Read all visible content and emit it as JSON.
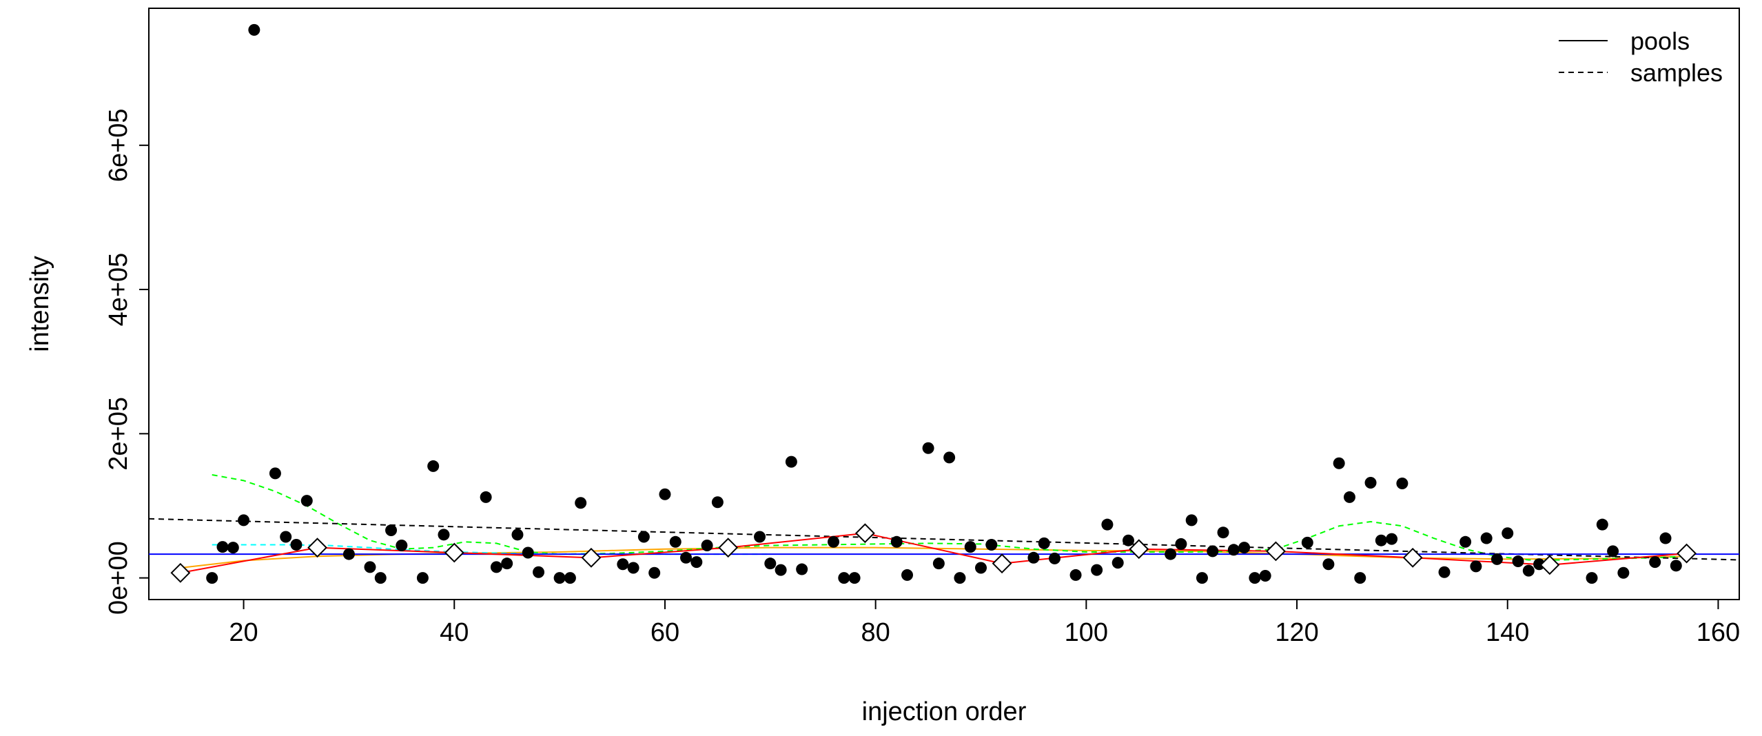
{
  "chart_data": {
    "type": "scatter",
    "title": "",
    "xlabel": "injection order",
    "ylabel": "intensity",
    "xlim": [
      11,
      162
    ],
    "ylim": [
      -30000,
      790000
    ],
    "x_ticks": [
      20,
      40,
      60,
      80,
      100,
      120,
      140,
      160
    ],
    "x_tick_labels": [
      "20",
      "40",
      "60",
      "80",
      "100",
      "120",
      "140",
      "160"
    ],
    "y_ticks": [
      0,
      200000,
      400000,
      600000
    ],
    "y_tick_labels": [
      "0e+00",
      "2e+05",
      "4e+05",
      "6e+05"
    ],
    "grid": false,
    "legend": {
      "placement": "top-right",
      "entries": [
        {
          "label": "pools",
          "line_style": "solid"
        },
        {
          "label": "samples",
          "line_style": "dashed"
        }
      ]
    },
    "colors": {
      "points": "#000000",
      "pools_line": "#ff0000",
      "samples_trend": "#000000",
      "loess_green": "#00ff00",
      "loess_cyan": "#00ffff",
      "orange_trend": "#ffa500",
      "blue_line": "#0000ff"
    },
    "samples": {
      "x": [
        17,
        18,
        19,
        20,
        21,
        23,
        24,
        25,
        26,
        30,
        32,
        33,
        34,
        35,
        37,
        38,
        39,
        43,
        44,
        45,
        46,
        47,
        48,
        50,
        51,
        52,
        56,
        57,
        58,
        59,
        60,
        61,
        62,
        63,
        64,
        65,
        69,
        70,
        71,
        72,
        73,
        76,
        77,
        78,
        82,
        83,
        85,
        86,
        87,
        88,
        89,
        90,
        91,
        95,
        96,
        97,
        99,
        101,
        102,
        103,
        104,
        108,
        109,
        110,
        111,
        112,
        113,
        114,
        115,
        116,
        117,
        121,
        123,
        124,
        125,
        126,
        127,
        128,
        129,
        130,
        134,
        136,
        137,
        138,
        139,
        140,
        141,
        142,
        143,
        148,
        149,
        150,
        151,
        154,
        155,
        156
      ],
      "y": [
        0,
        43000,
        42000,
        80000,
        760000,
        145000,
        57000,
        46000,
        107000,
        33000,
        15000,
        0,
        66000,
        45000,
        0,
        155000,
        60000,
        112000,
        15000,
        20000,
        60000,
        35000,
        8000,
        0,
        0,
        104000,
        19000,
        14000,
        57000,
        7000,
        116000,
        50000,
        28000,
        22000,
        45000,
        105000,
        57000,
        20000,
        11000,
        161000,
        12000,
        50000,
        0,
        0,
        50000,
        4000,
        180000,
        20000,
        167000,
        0,
        43000,
        14000,
        46000,
        28000,
        48000,
        27000,
        4000,
        11000,
        74000,
        21000,
        52000,
        33000,
        47000,
        80000,
        0,
        37000,
        63000,
        39000,
        42000,
        0,
        3000,
        49000,
        19000,
        159000,
        112000,
        0,
        132000,
        52000,
        54000,
        131000,
        8000,
        50000,
        16000,
        55000,
        26000,
        62000,
        23000,
        10000,
        19000,
        0,
        74000,
        37000,
        7000,
        22000,
        55000,
        17000
      ]
    },
    "pools": {
      "x": [
        14,
        27,
        40,
        53,
        66,
        79,
        92,
        105,
        118,
        131,
        144,
        157
      ],
      "y": [
        7000,
        42000,
        35000,
        28000,
        42000,
        62000,
        20000,
        40000,
        37000,
        28000,
        18000,
        34000
      ]
    },
    "samples_trend": {
      "x": [
        11,
        162
      ],
      "y": [
        82000,
        25000
      ]
    },
    "blue_line": {
      "x": [
        11,
        162
      ],
      "y": [
        33000,
        33000
      ]
    },
    "loess_green": {
      "x": [
        17,
        20,
        23,
        26,
        29,
        32,
        35,
        38,
        41,
        44,
        47,
        50,
        55,
        60,
        65,
        70,
        75,
        80,
        85,
        90,
        95,
        100,
        105,
        110,
        115,
        118,
        121,
        124,
        127,
        130,
        133,
        136,
        139,
        142,
        145,
        148,
        151,
        154,
        157
      ],
      "y": [
        143000,
        135000,
        120000,
        100000,
        75000,
        52000,
        40000,
        42000,
        50000,
        48000,
        36000,
        33000,
        34000,
        37000,
        42000,
        45000,
        46000,
        47000,
        48000,
        47000,
        40000,
        36000,
        36000,
        36000,
        37000,
        40000,
        55000,
        72000,
        78000,
        72000,
        55000,
        40000,
        30000,
        25000,
        25000,
        26000,
        27000,
        28000,
        30000
      ]
    },
    "loess_cyan": {
      "x": [
        17,
        20,
        24,
        28,
        32,
        35,
        40,
        45,
        50,
        60,
        70
      ],
      "y": [
        46000,
        46000,
        46000,
        45000,
        42000,
        39000,
        36000,
        34000,
        33000,
        33000,
        33000
      ]
    },
    "orange_trend": {
      "x": [
        14,
        20,
        27,
        35,
        40,
        50,
        60,
        70,
        80,
        90,
        100,
        110,
        120,
        130,
        140,
        150,
        157
      ],
      "y": [
        14000,
        24000,
        30000,
        33000,
        34000,
        36000,
        40000,
        42000,
        42000,
        40000,
        38000,
        37000,
        33000,
        28000,
        26000,
        27000,
        30000
      ]
    }
  }
}
